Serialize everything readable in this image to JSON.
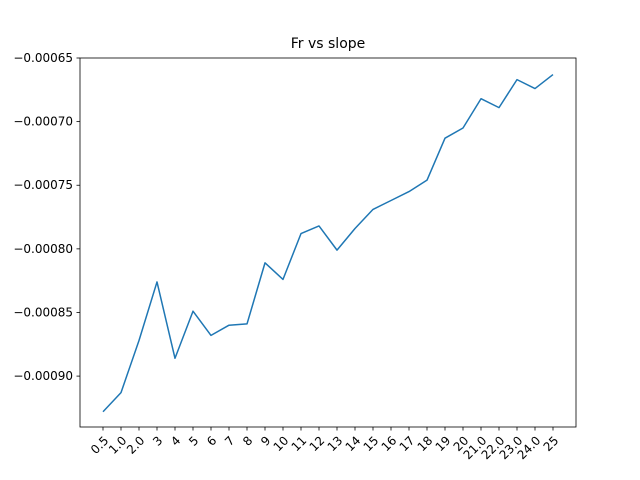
{
  "chart_data": {
    "type": "line",
    "title": "Fr vs slope",
    "xlabel": "",
    "ylabel": "",
    "categories": [
      "0.5",
      "1.0",
      "2.0",
      "3",
      "4",
      "5",
      "6",
      "7",
      "8",
      "9",
      "10",
      "11",
      "12",
      "13",
      "14",
      "15",
      "16",
      "17",
      "18",
      "19",
      "20",
      "21.0",
      "22.0",
      "23.0",
      "24.0",
      "25"
    ],
    "series": [
      {
        "values": [
          -0.000928,
          -0.000913,
          -0.000872,
          -0.000826,
          -0.000886,
          -0.000849,
          -0.000868,
          -0.00086,
          -0.000859,
          -0.000811,
          -0.000824,
          -0.000788,
          -0.000782,
          -0.000801,
          -0.000784,
          -0.000769,
          -0.000762,
          -0.000755,
          -0.000746,
          -0.000713,
          -0.000705,
          -0.000682,
          -0.000689,
          -0.000667,
          -0.000674,
          -0.000663
        ],
        "color": "#1f77b4"
      }
    ],
    "ylim": [
      -0.00094,
      -0.00065
    ],
    "yticks": [
      -0.0009,
      -0.00085,
      -0.0008,
      -0.00075,
      -0.0007,
      -0.00065
    ],
    "ytick_labels": [
      "−0.00090",
      "−0.00085",
      "−0.00080",
      "−0.00075",
      "−0.00070",
      "−0.00065"
    ],
    "grid": false,
    "legend": "none"
  }
}
